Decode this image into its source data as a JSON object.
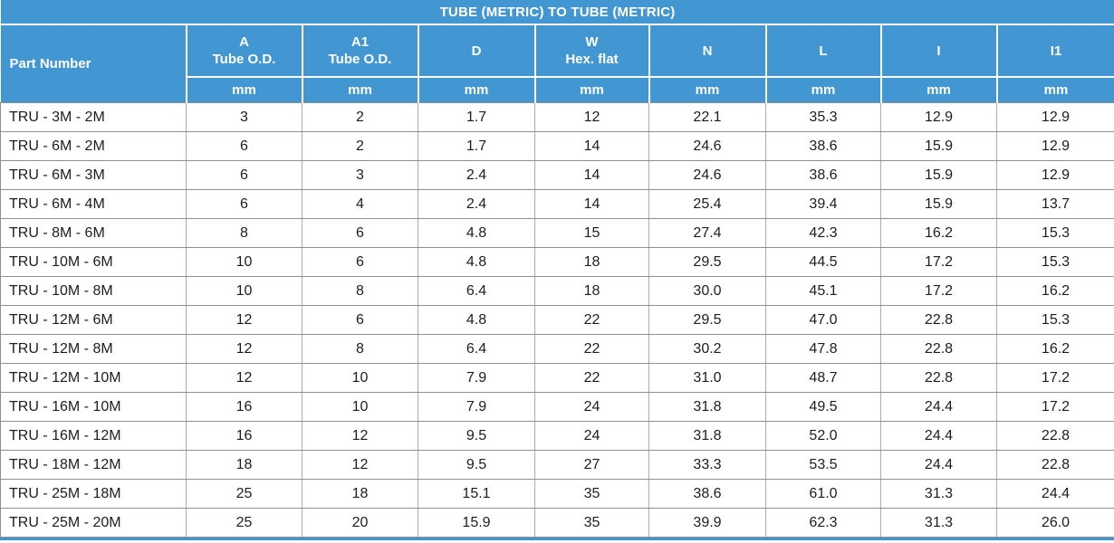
{
  "title": "TUBE (METRIC) TO TUBE (METRIC)",
  "colors": {
    "header_blue": "#4296D2",
    "grid_gray": "#8f8f8f",
    "cell_text": "#1d1d1d",
    "header_text": "#ffffff"
  },
  "header": {
    "part_label": "Part Number",
    "cols": [
      {
        "l1": "A",
        "l2": "Tube O.D.",
        "unit": "mm"
      },
      {
        "l1": "A1",
        "l2": "Tube O.D.",
        "unit": "mm"
      },
      {
        "l1": "D",
        "l2": "",
        "unit": "mm"
      },
      {
        "l1": "W",
        "l2": "Hex. flat",
        "unit": "mm"
      },
      {
        "l1": "N",
        "l2": "",
        "unit": "mm"
      },
      {
        "l1": "L",
        "l2": "",
        "unit": "mm"
      },
      {
        "l1": "I",
        "l2": "",
        "unit": "mm"
      },
      {
        "l1": "I1",
        "l2": "",
        "unit": "mm"
      }
    ]
  },
  "chart_data": {
    "type": "table",
    "title": "TUBE (METRIC) TO TUBE (METRIC)",
    "columns": [
      "Part Number",
      "A Tube O.D. (mm)",
      "A1 Tube O.D. (mm)",
      "D (mm)",
      "W Hex. flat (mm)",
      "N (mm)",
      "L (mm)",
      "I (mm)",
      "I1 (mm)"
    ],
    "rows": [
      [
        "TRU - 3M - 2M",
        "3",
        "2",
        "1.7",
        "12",
        "22.1",
        "35.3",
        "12.9",
        "12.9"
      ],
      [
        "TRU - 6M - 2M",
        "6",
        "2",
        "1.7",
        "14",
        "24.6",
        "38.6",
        "15.9",
        "12.9"
      ],
      [
        "TRU - 6M - 3M",
        "6",
        "3",
        "2.4",
        "14",
        "24.6",
        "38.6",
        "15.9",
        "12.9"
      ],
      [
        "TRU - 6M - 4M",
        "6",
        "4",
        "2.4",
        "14",
        "25.4",
        "39.4",
        "15.9",
        "13.7"
      ],
      [
        "TRU - 8M - 6M",
        "8",
        "6",
        "4.8",
        "15",
        "27.4",
        "42.3",
        "16.2",
        "15.3"
      ],
      [
        "TRU - 10M - 6M",
        "10",
        "6",
        "4.8",
        "18",
        "29.5",
        "44.5",
        "17.2",
        "15.3"
      ],
      [
        "TRU - 10M - 8M",
        "10",
        "8",
        "6.4",
        "18",
        "30.0",
        "45.1",
        "17.2",
        "16.2"
      ],
      [
        "TRU - 12M - 6M",
        "12",
        "6",
        "4.8",
        "22",
        "29.5",
        "47.0",
        "22.8",
        "15.3"
      ],
      [
        "TRU - 12M - 8M",
        "12",
        "8",
        "6.4",
        "22",
        "30.2",
        "47.8",
        "22.8",
        "16.2"
      ],
      [
        "TRU - 12M - 10M",
        "12",
        "10",
        "7.9",
        "22",
        "31.0",
        "48.7",
        "22.8",
        "17.2"
      ],
      [
        "TRU - 16M - 10M",
        "16",
        "10",
        "7.9",
        "24",
        "31.8",
        "49.5",
        "24.4",
        "17.2"
      ],
      [
        "TRU - 16M - 12M",
        "16",
        "12",
        "9.5",
        "24",
        "31.8",
        "52.0",
        "24.4",
        "22.8"
      ],
      [
        "TRU - 18M - 12M",
        "18",
        "12",
        "9.5",
        "27",
        "33.3",
        "53.5",
        "24.4",
        "22.8"
      ],
      [
        "TRU - 25M - 18M",
        "25",
        "18",
        "15.1",
        "35",
        "38.6",
        "61.0",
        "31.3",
        "24.4"
      ],
      [
        "TRU - 25M - 20M",
        "25",
        "20",
        "15.9",
        "35",
        "39.9",
        "62.3",
        "31.3",
        "26.0"
      ]
    ]
  }
}
